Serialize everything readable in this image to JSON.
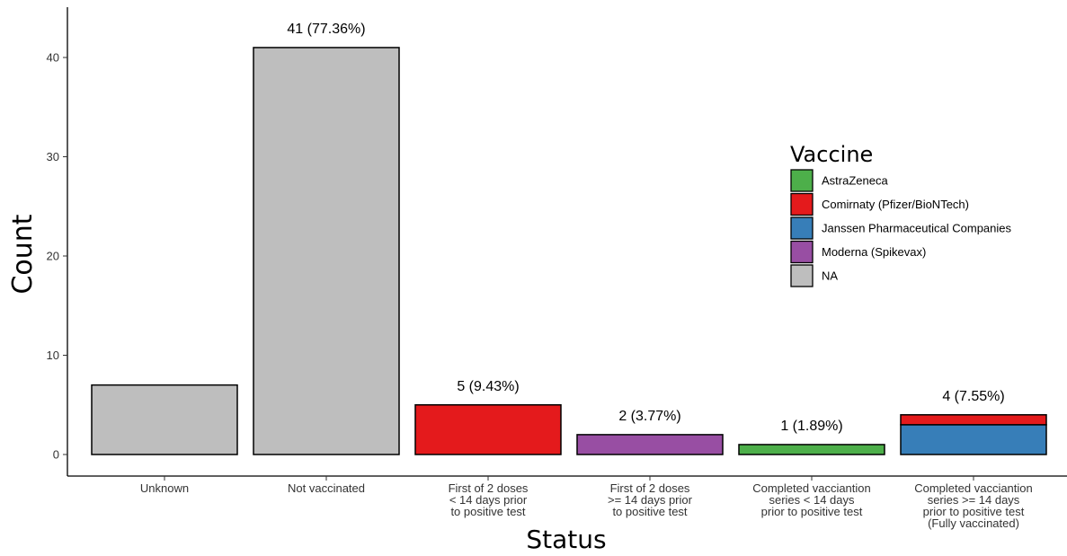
{
  "chart_data": {
    "type": "bar",
    "stacked": true,
    "xlabel": "Status",
    "ylabel": "Count",
    "ylim": [
      0,
      45
    ],
    "yticks": [
      0,
      10,
      20,
      30,
      40
    ],
    "grid": false,
    "legend_position": "right",
    "categories": [
      [
        "Unknown"
      ],
      [
        "Not vaccinated"
      ],
      [
        "First of 2 doses",
        "< 14 days prior",
        "to positive test"
      ],
      [
        "First of 2 doses",
        ">= 14 days prior",
        "to positive test"
      ],
      [
        "Completed vacciantion",
        "series < 14 days",
        "prior to positive test"
      ],
      [
        "Completed vacciantion",
        "series >= 14 days",
        "prior to positive test",
        "(Fully vaccinated)"
      ]
    ],
    "bar_labels": [
      "",
      "41 (77.36%)",
      "5 (9.43%)",
      "2 (3.77%)",
      "1 (1.89%)",
      "4 (7.55%)"
    ],
    "legend_title": "Vaccine",
    "series": [
      {
        "name": "AstraZeneca",
        "color": "#4daf4a",
        "values": [
          0,
          0,
          0,
          0,
          1,
          0
        ]
      },
      {
        "name": "Comirnaty (Pfizer/BioNTech)",
        "color": "#e41a1c",
        "values": [
          0,
          0,
          5,
          0,
          0,
          1
        ]
      },
      {
        "name": "Janssen Pharmaceutical Companies",
        "color": "#377eb8",
        "values": [
          0,
          0,
          0,
          0,
          0,
          3
        ]
      },
      {
        "name": "Moderna  (Spikevax)",
        "color": "#984ea3",
        "values": [
          0,
          0,
          0,
          2,
          0,
          0
        ]
      },
      {
        "name": "NA",
        "color": "#bebebe",
        "values": [
          7,
          41,
          0,
          0,
          0,
          0
        ]
      }
    ],
    "stack_order": [
      "Janssen Pharmaceutical Companies",
      "Comirnaty (Pfizer/BioNTech)",
      "AstraZeneca",
      "Moderna  (Spikevax)",
      "NA"
    ]
  }
}
